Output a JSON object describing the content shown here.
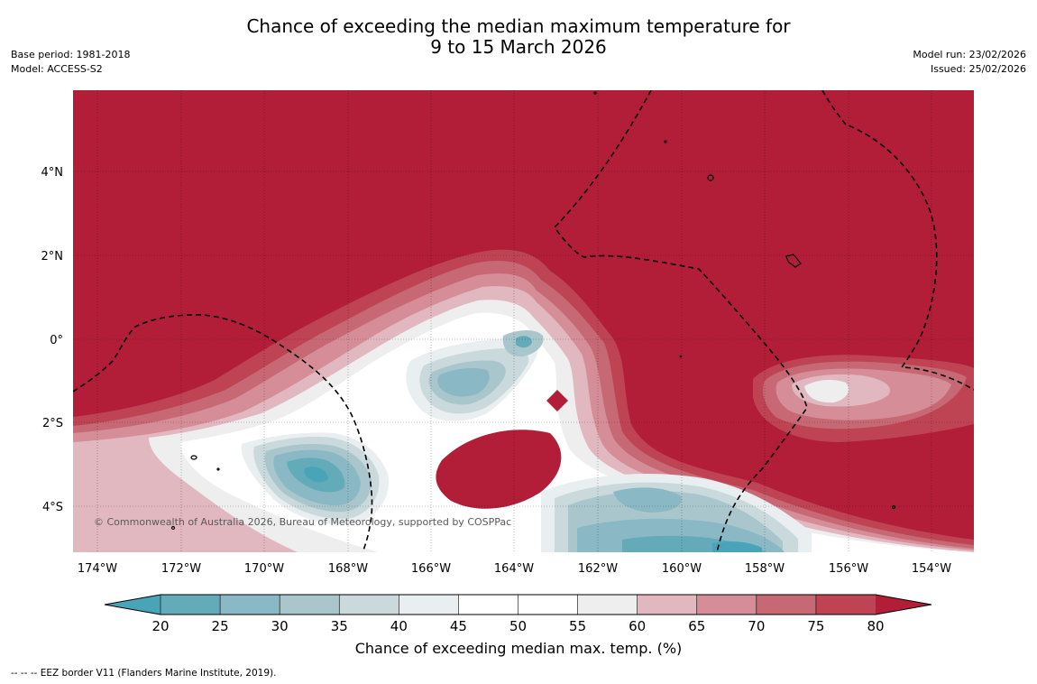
{
  "title": {
    "line1": "Chance of exceeding the median maximum temperature for",
    "line2": "9 to 15 March 2026"
  },
  "meta_left": {
    "base_period": "Base period: 1981-2018",
    "model": "Model: ACCESS-S2"
  },
  "meta_right": {
    "model_run": "Model run: 23/02/2026",
    "issued": "Issued: 25/02/2026"
  },
  "map": {
    "lon_ticks": [
      "174°W",
      "172°W",
      "170°W",
      "168°W",
      "166°W",
      "164°W",
      "162°W",
      "160°W",
      "158°W",
      "156°W",
      "154°W"
    ],
    "lat_ticks": [
      "4°N",
      "2°N",
      "0°",
      "2°S",
      "4°S"
    ],
    "copyright": "© Commonwealth of Australia 2026, Bureau of Meteorology, supported by COSPPac"
  },
  "colorbar": {
    "labels": [
      "20",
      "25",
      "30",
      "35",
      "40",
      "45",
      "50",
      "55",
      "60",
      "65",
      "70",
      "75",
      "80"
    ],
    "colors": [
      "#63abb9",
      "#8ab8c5",
      "#aac6cd",
      "#cad9dc",
      "#e9eef0",
      "#ffffff",
      "#ffffff",
      "#eeeeee",
      "#e1b8bf",
      "#d58d98",
      "#c66974",
      "#be4454"
    ],
    "under_color": "#47a5b7",
    "over_color": "#b21d38",
    "label": "Chance of exceeding median max. temp. (%)"
  },
  "footnote": "-- -- -- EEZ border V11 (Flanders Marine Institute, 2019)."
}
